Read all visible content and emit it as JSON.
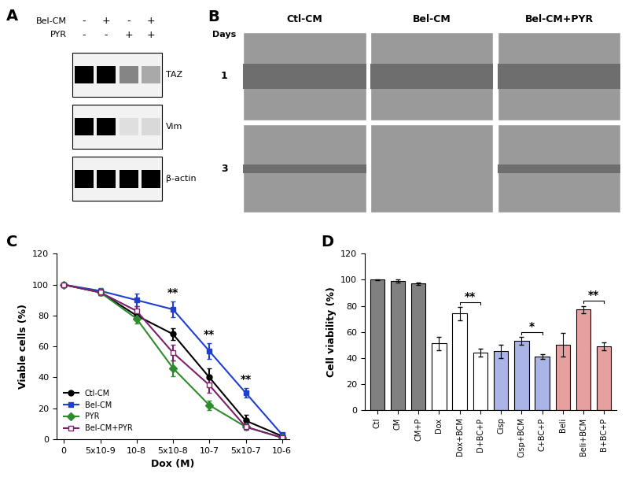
{
  "panel_labels": [
    "A",
    "B",
    "C",
    "D"
  ],
  "blot": {
    "conditions": [
      {
        "label": "Bel-CM",
        "signs": [
          "-",
          "+",
          "-",
          "+"
        ]
      },
      {
        "label": "PYR",
        "signs": [
          "-",
          "-",
          "+",
          "+"
        ]
      }
    ],
    "bands": [
      {
        "label": "TAZ",
        "intensity": [
          1.0,
          1.0,
          0.45,
          0.3
        ]
      },
      {
        "label": "Vim",
        "intensity": [
          1.0,
          1.0,
          0.08,
          0.1
        ]
      },
      {
        "label": "β-actin",
        "intensity": [
          1.0,
          1.0,
          1.0,
          1.0
        ]
      }
    ]
  },
  "micrographs": {
    "row_header": "Days",
    "columns": [
      "Ctl-CM",
      "Bel-CM",
      "Bel-CM+PYR"
    ],
    "rows": [
      "1",
      "3"
    ]
  },
  "chart_data": [
    {
      "type": "line",
      "x_label": "Dox (M)",
      "y_label": "Viable cells (%)",
      "categories": [
        "0",
        "5x10-9",
        "10-8",
        "5x10-8",
        "10-7",
        "5x10-7",
        "10-6"
      ],
      "ylim": [
        0,
        120
      ],
      "yticks": [
        0,
        20,
        40,
        60,
        80,
        100,
        120
      ],
      "legend": "lower left",
      "series": [
        {
          "name": "Ctl-CM",
          "color": "#000000",
          "marker": "circle",
          "values": [
            100,
            95,
            80,
            68,
            40,
            12,
            2
          ],
          "errors": [
            1,
            2,
            3,
            4,
            6,
            4,
            1
          ]
        },
        {
          "name": "Bel-CM",
          "color": "#1f3fd0",
          "marker": "square",
          "values": [
            100,
            96,
            90,
            84,
            57,
            30,
            3
          ],
          "errors": [
            1,
            2,
            4,
            5,
            5,
            3,
            1
          ]
        },
        {
          "name": "PYR",
          "color": "#2e8b2e",
          "marker": "diamond",
          "values": [
            100,
            95,
            78,
            46,
            22,
            8,
            1
          ],
          "errors": [
            1,
            2,
            3,
            5,
            3,
            2,
            1
          ]
        },
        {
          "name": "Bel-CM+PYR",
          "color": "#7b1f6e",
          "marker": "open_square",
          "values": [
            100,
            95,
            83,
            56,
            35,
            8,
            1
          ],
          "errors": [
            1,
            2,
            3,
            5,
            5,
            2,
            1
          ]
        }
      ],
      "annotations": [
        {
          "category": "5x10-8",
          "y": 91,
          "text": "**"
        },
        {
          "category": "10-7",
          "y": 64,
          "text": "**"
        },
        {
          "category": "5x10-7",
          "y": 35,
          "text": "**"
        }
      ]
    },
    {
      "type": "bar",
      "y_label": "Cell viability (%)",
      "categories": [
        "Ctl",
        "CM",
        "CM+P",
        "Dox",
        "Dox+BCM",
        "D+BC+P",
        "Cisp",
        "Cisp+BCM",
        "C+BC+P",
        "Beli",
        "Beli+BCM",
        "B+BC+P"
      ],
      "values": [
        100,
        99,
        97,
        51,
        74,
        44,
        45,
        53,
        41,
        50,
        77,
        49
      ],
      "errors": [
        0.5,
        1,
        1,
        5,
        5,
        3,
        5,
        3,
        2,
        9,
        3,
        3
      ],
      "colors": [
        "#808080",
        "#808080",
        "#808080",
        "#ffffff",
        "#ffffff",
        "#ffffff",
        "#aab4e6",
        "#aab4e6",
        "#aab4e6",
        "#e6a0a0",
        "#e6a0a0",
        "#e6a0a0"
      ],
      "ylim": [
        0,
        120
      ],
      "yticks": [
        0,
        20,
        40,
        60,
        80,
        100,
        120
      ],
      "annotations": [
        {
          "from": "Dox+BCM",
          "to": "D+BC+P",
          "y": 83,
          "text": "**"
        },
        {
          "from": "Cisp+BCM",
          "to": "C+BC+P",
          "y": 60,
          "text": "*"
        },
        {
          "from": "Beli+BCM",
          "to": "B+BC+P",
          "y": 84,
          "text": "**"
        }
      ]
    }
  ]
}
